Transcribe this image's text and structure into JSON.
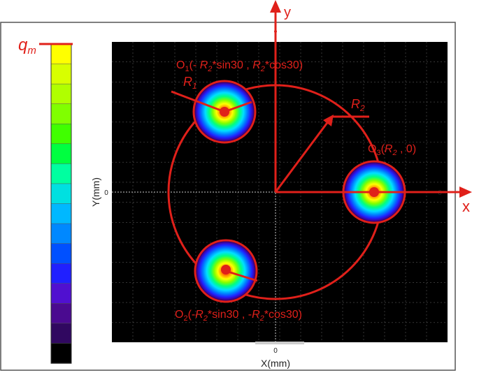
{
  "colorbar": {
    "label": "q",
    "label_sub": "m",
    "colors": [
      "#ffff00",
      "#d8ff00",
      "#b0ff00",
      "#80ff00",
      "#40ff00",
      "#00ff40",
      "#00ffa0",
      "#00e0e0",
      "#00b8ff",
      "#0088ff",
      "#0050ff",
      "#2020ff",
      "#5010d0",
      "#4a0a90",
      "#300860",
      "#000000"
    ]
  },
  "plot": {
    "xlabel": "X(mm)",
    "ylabel": "Y(mm)",
    "x_zero_label": "0",
    "y_zero_label": "0",
    "y_zero_right": "0"
  },
  "axes": {
    "x_name": "x",
    "y_name": "y",
    "r1": "R",
    "r1_sub": "1",
    "r2": "R",
    "r2_sub": "2"
  },
  "points": {
    "o1": {
      "name": "O",
      "sub": "1",
      "text_a": "(- ",
      "r": "R",
      "rsub": "2",
      "text_b": "*sin30 ,  ",
      "r2": "R",
      "r2sub": "2",
      "text_c": "*cos30)"
    },
    "o2": {
      "name": "O",
      "sub": "2",
      "text_a": "(-",
      "r": "R",
      "rsub": "2",
      "text_b": "*sin30 ,  -",
      "r2": "R",
      "r2sub": "2",
      "text_c": "*cos30)"
    },
    "o3": {
      "name": "O",
      "sub": "3",
      "text_a": "(",
      "r": "R",
      "rsub": "2",
      "text_b": " ,   0)"
    }
  },
  "colors": {
    "annotation": "#e0201a",
    "plot_bg": "#000000",
    "grid": "#555555"
  }
}
